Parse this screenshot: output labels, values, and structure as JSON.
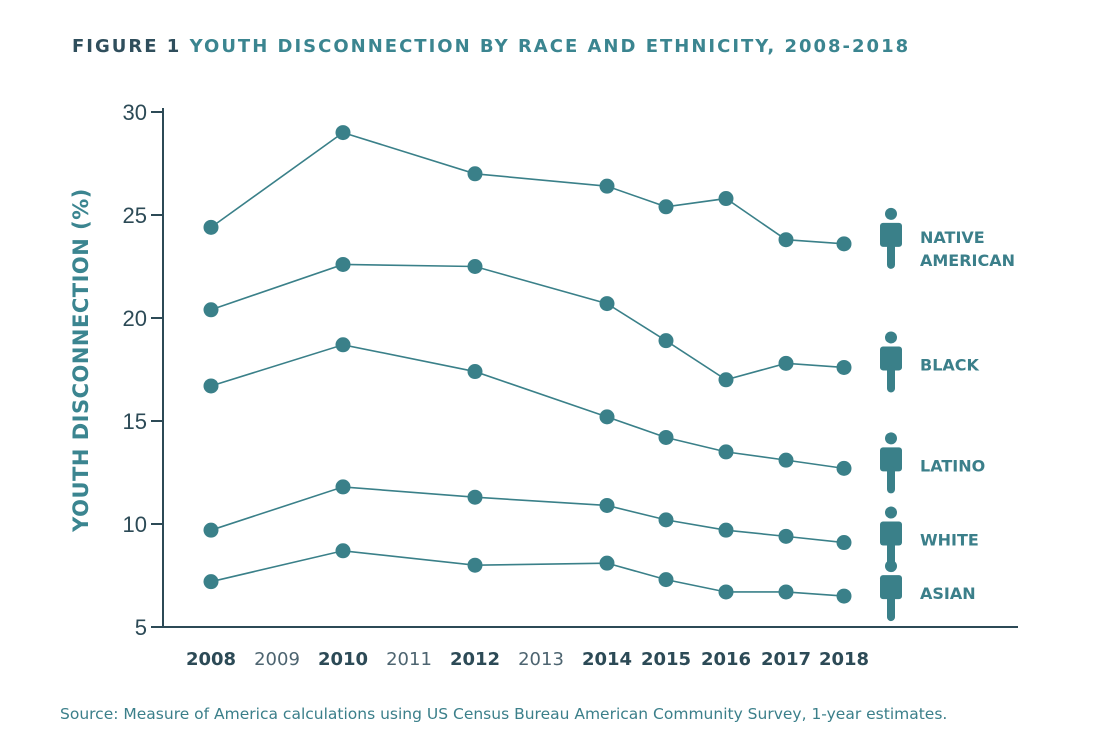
{
  "header": {
    "figure_label": "FIGURE 1",
    "title": "YOUTH DISCONNECTION BY RACE AND ETHNICITY, 2008-2018"
  },
  "source": "Source: Measure of America calculations using US Census Bureau American Community Survey, 1-year estimates.",
  "colors": {
    "accent": "#3b8590",
    "line": "#3a8089",
    "axis": "#2c4a56",
    "text_dark": "#2f4e5c"
  },
  "chart_data": {
    "type": "line",
    "title": "YOUTH DISCONNECTION BY RACE AND ETHNICITY, 2008-2018",
    "xlabel": "",
    "ylabel": "YOUTH DISCONNECTION (%)",
    "ylim": [
      5,
      30
    ],
    "yticks": [
      5,
      10,
      15,
      20,
      25,
      30
    ],
    "x": [
      2008,
      2009,
      2010,
      2011,
      2012,
      2013,
      2014,
      2015,
      2016,
      2017,
      2018
    ],
    "x_tick_labels": [
      "2008",
      "2009",
      "2010",
      "2011",
      "2012",
      "2013",
      "2014",
      "2015",
      "2016",
      "2017",
      "2018"
    ],
    "x_bold_ticks": [
      "2008",
      "2010",
      "2012",
      "2014",
      "2015",
      "2016",
      "2017",
      "2018"
    ],
    "series": [
      {
        "name": "NATIVE AMERICAN",
        "label_lines": [
          "NATIVE",
          "AMERICAN"
        ],
        "icon": "person-icon",
        "points": [
          [
            2008,
            24.4
          ],
          [
            2010,
            29.0
          ],
          [
            2012,
            27.0
          ],
          [
            2014,
            26.4
          ],
          [
            2015,
            25.4
          ],
          [
            2016,
            25.8
          ],
          [
            2017,
            23.8
          ],
          [
            2018,
            23.6
          ]
        ]
      },
      {
        "name": "BLACK",
        "label_lines": [
          "BLACK"
        ],
        "icon": "person-icon",
        "points": [
          [
            2008,
            20.4
          ],
          [
            2010,
            22.6
          ],
          [
            2012,
            22.5
          ],
          [
            2014,
            20.7
          ],
          [
            2015,
            18.9
          ],
          [
            2016,
            17.0
          ],
          [
            2017,
            17.8
          ],
          [
            2018,
            17.6
          ]
        ]
      },
      {
        "name": "LATINO",
        "label_lines": [
          "LATINO"
        ],
        "icon": "person-icon",
        "points": [
          [
            2008,
            16.7
          ],
          [
            2010,
            18.7
          ],
          [
            2012,
            17.4
          ],
          [
            2014,
            15.2
          ],
          [
            2015,
            14.2
          ],
          [
            2016,
            13.5
          ],
          [
            2017,
            13.1
          ],
          [
            2018,
            12.7
          ]
        ]
      },
      {
        "name": "WHITE",
        "label_lines": [
          "WHITE"
        ],
        "icon": "person-icon",
        "points": [
          [
            2008,
            9.7
          ],
          [
            2010,
            11.8
          ],
          [
            2012,
            11.3
          ],
          [
            2014,
            10.9
          ],
          [
            2015,
            10.2
          ],
          [
            2016,
            9.7
          ],
          [
            2017,
            9.4
          ],
          [
            2018,
            9.1
          ]
        ]
      },
      {
        "name": "ASIAN",
        "label_lines": [
          "ASIAN"
        ],
        "icon": "person-icon",
        "points": [
          [
            2008,
            7.2
          ],
          [
            2010,
            8.7
          ],
          [
            2012,
            8.0
          ],
          [
            2014,
            8.1
          ],
          [
            2015,
            7.3
          ],
          [
            2016,
            6.7
          ],
          [
            2017,
            6.7
          ],
          [
            2018,
            6.5
          ]
        ]
      }
    ]
  }
}
